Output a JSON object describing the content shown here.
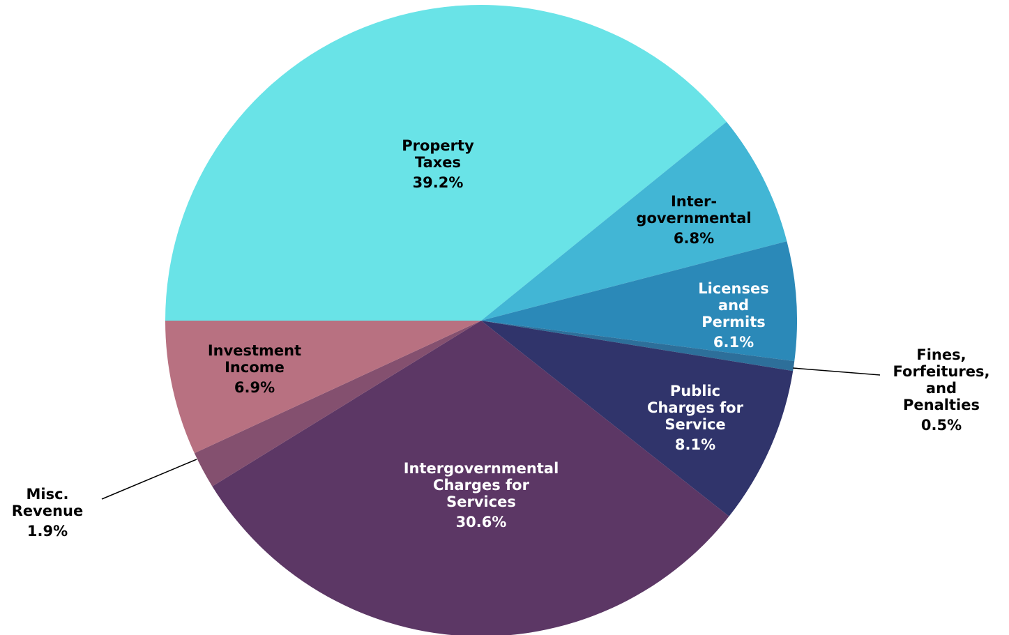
{
  "chart_data": {
    "type": "pie",
    "title": "",
    "start_angle_deg": 180,
    "direction": "clockwise",
    "slices": [
      {
        "label_lines": [
          "Property",
          "Taxes"
        ],
        "percent_label": "39.2%",
        "value": 39.2,
        "color": "#69e3e7",
        "text_color": "#000000"
      },
      {
        "label_lines": [
          "Inter-",
          "governmental"
        ],
        "percent_label": "6.8%",
        "value": 6.8,
        "color": "#42b6d5",
        "text_color": "#000000"
      },
      {
        "label_lines": [
          "Licenses",
          "and",
          "Permits"
        ],
        "percent_label": "6.1%",
        "value": 6.1,
        "color": "#2b89b8",
        "text_color": "#ffffff"
      },
      {
        "label_lines": [
          "Fines,",
          "Forfeitures,",
          "and",
          "Penalties"
        ],
        "percent_label": "0.5%",
        "value": 0.5,
        "color": "#2d6f9a",
        "text_color": "#000000"
      },
      {
        "label_lines": [
          "Public",
          "Charges for",
          "Service"
        ],
        "percent_label": "8.1%",
        "value": 8.1,
        "color": "#30346b",
        "text_color": "#ffffff"
      },
      {
        "label_lines": [
          "Intergovernmental",
          "Charges for",
          "Services"
        ],
        "percent_label": "30.6%",
        "value": 30.6,
        "color": "#5c3765",
        "text_color": "#ffffff"
      },
      {
        "label_lines": [
          "Misc.",
          "Revenue"
        ],
        "percent_label": "1.9%",
        "value": 1.9,
        "color": "#84506f",
        "text_color": "#000000"
      },
      {
        "label_lines": [
          "Investment",
          "Income"
        ],
        "percent_label": "6.9%",
        "value": 6.9,
        "color": "#b87181",
        "text_color": "#000000"
      }
    ]
  }
}
